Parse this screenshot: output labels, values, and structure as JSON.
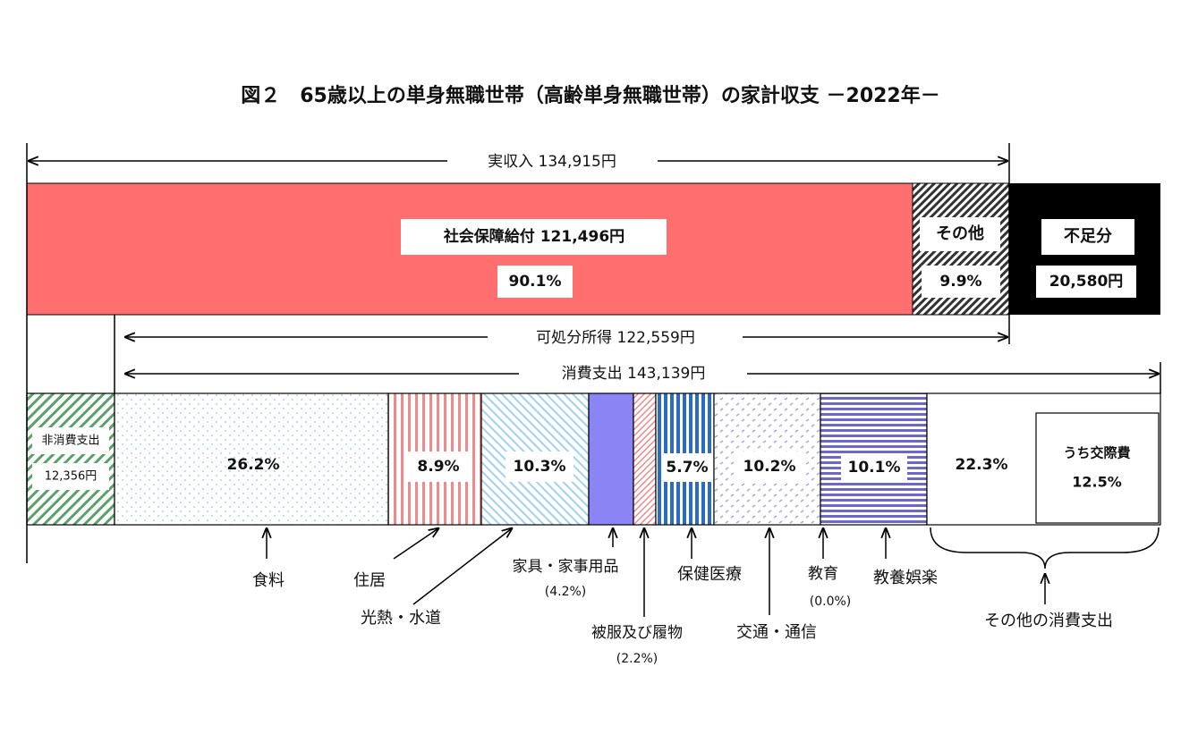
{
  "title": "図２　65歳以上の単身無職世帯（高齢単身無職世帯）の家計収支 －2022年－",
  "income": {
    "label": "実収入 134,915円",
    "social_security": {
      "label": "社会保障給付 121,496円",
      "share": "90.1%"
    },
    "other": {
      "label": "その他",
      "share": "9.9%"
    },
    "shortfall": {
      "label": "不足分",
      "amount": "20,580円"
    }
  },
  "disposable_income": "可処分所得 122,559円",
  "consumption": "消費支出 143,139円",
  "non_consumption": {
    "label": "非消費支出",
    "amount": "12,356円"
  },
  "items": [
    {
      "label": "食料",
      "share": "26.2%"
    },
    {
      "label": "住居",
      "share": "8.9%"
    },
    {
      "label": "光熱・水道",
      "share": "10.3%"
    },
    {
      "label": "家具・家事用品",
      "note": "(4.2%)"
    },
    {
      "label": "被服及び履物",
      "note": "(2.2%)"
    },
    {
      "label": "保健医療",
      "share": "5.7%"
    },
    {
      "label": "交通・通信",
      "share": "10.2%"
    },
    {
      "label": "教育",
      "note": "(0.0%)"
    },
    {
      "label": "教養娯楽",
      "share": "10.1%"
    },
    {
      "label": "その他の消費支出",
      "share": "22.3%",
      "sub_label": "うち交際費",
      "sub_share": "12.5%"
    }
  ]
}
